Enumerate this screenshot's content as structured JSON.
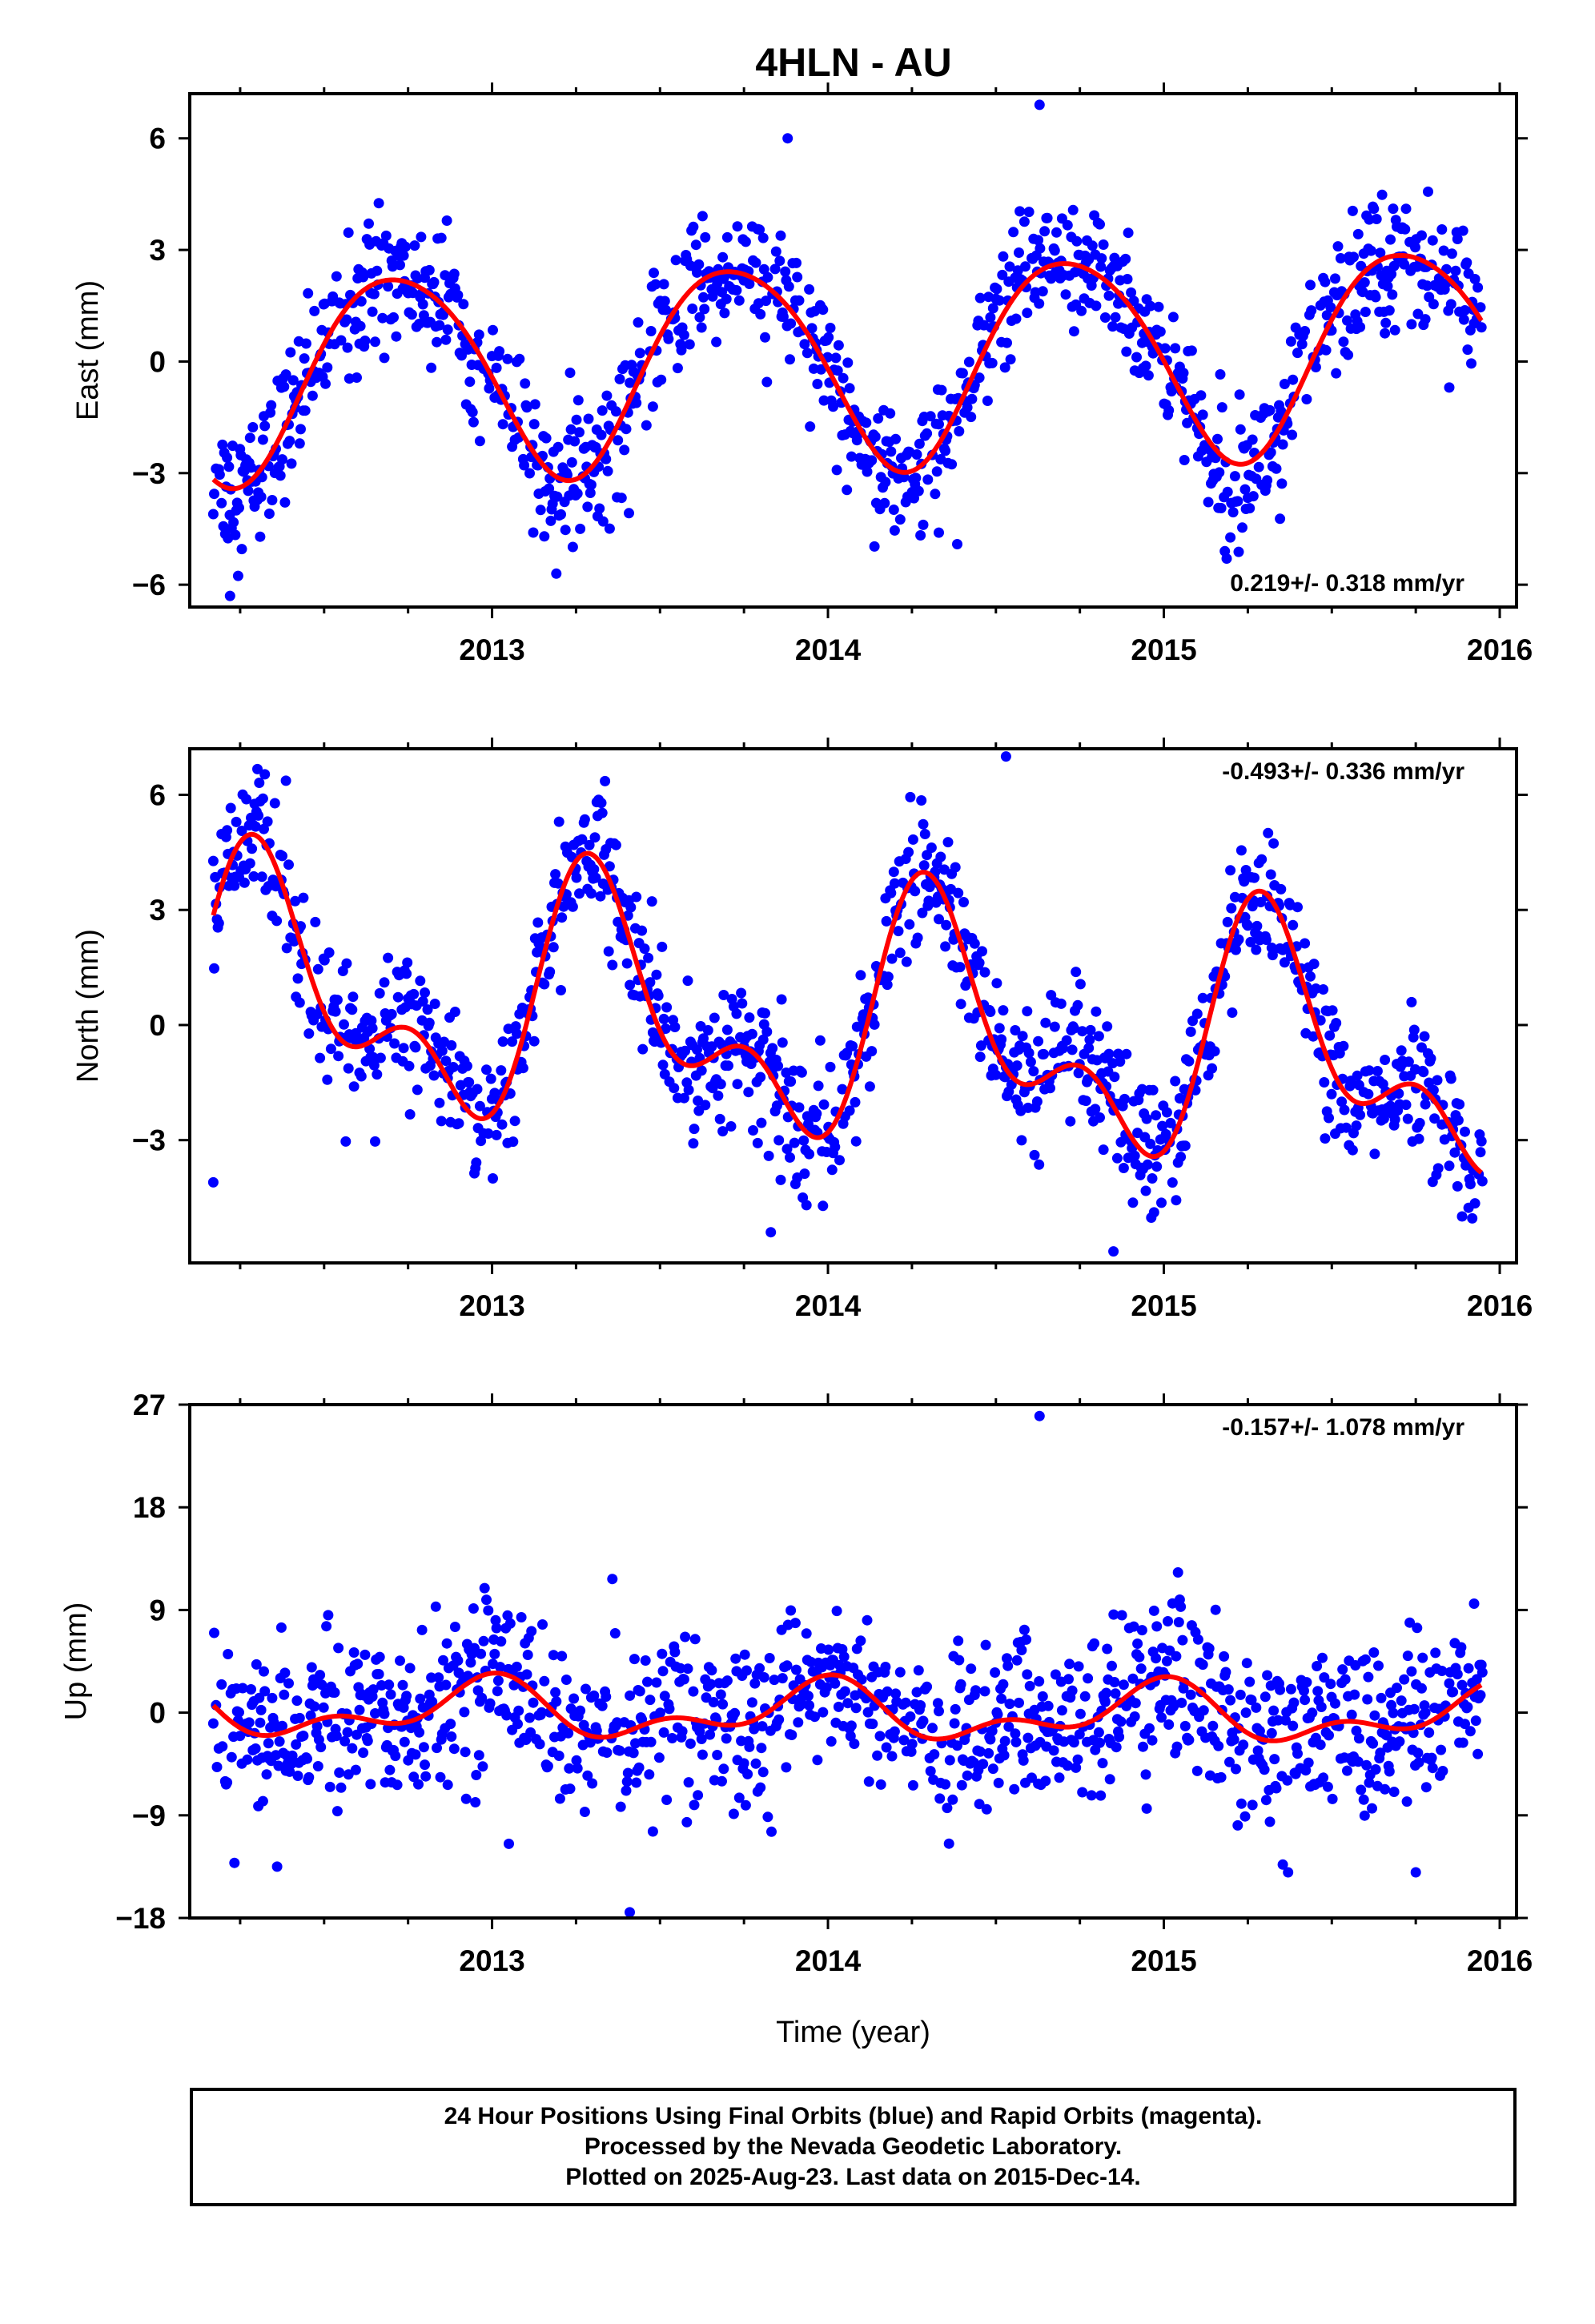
{
  "title": "4HLN - AU",
  "colors": {
    "points": "#0000ff",
    "fit": "#ff0000",
    "frame": "#000000"
  },
  "footer": {
    "line1": "24 Hour Positions Using Final Orbits (blue) and Rapid Orbits (magenta).",
    "line2": "Processed by the Nevada Geodetic Laboratory.",
    "line3": "Plotted on 2025-Aug-23. Last data on 2015-Dec-14."
  },
  "chart_data": [
    {
      "type": "scatter",
      "name": "east",
      "ylabel": "East (mm)",
      "xlabel": "",
      "xlim": [
        2012.1,
        2016.05
      ],
      "ylim": [
        -6.6,
        7.2
      ],
      "xticks": [
        "2013",
        "2014",
        "2015",
        "2016"
      ],
      "xtick_values": [
        2013,
        2014,
        2015,
        2016
      ],
      "yticks": [
        "−6",
        "−3",
        "0",
        "3",
        "6"
      ],
      "ytick_values": [
        -6,
        -3,
        0,
        3,
        6
      ],
      "rate_label": "0.219+/- 0.318 mm/yr",
      "rate_position": "bottom-right",
      "x_range": [
        2012.17,
        2015.95
      ],
      "fit": {
        "rate": 0.219,
        "annual_cos": -0.5,
        "annual_sin": -2.7,
        "semi_cos": 0.3,
        "semi_sin": 0.0
      },
      "noise": 0.9,
      "outliers": [
        [
          2014.63,
          6.9
        ],
        [
          2012.22,
          -6.3
        ],
        [
          2013.88,
          6.0
        ],
        [
          2014.33,
          -4.6
        ]
      ]
    },
    {
      "type": "scatter",
      "name": "north",
      "ylabel": "North (mm)",
      "xlabel": "",
      "xlim": [
        2012.1,
        2016.05
      ],
      "ylim": [
        -6.2,
        7.2
      ],
      "xticks": [
        "2013",
        "2014",
        "2015",
        "2016"
      ],
      "xtick_values": [
        2013,
        2014,
        2015,
        2016
      ],
      "yticks": [
        "−3",
        "0",
        "3",
        "6"
      ],
      "ytick_values": [
        -3,
        0,
        3,
        6
      ],
      "rate_label": "-0.493+/- 0.336 mm/yr",
      "rate_position": "top-right",
      "x_range": [
        2012.17,
        2015.95
      ],
      "fit": {
        "rate": -0.493,
        "annual_cos": -1.2,
        "annual_sin": 2.3,
        "semi_cos": -1.6,
        "semi_sin": -0.4
      },
      "noise": 0.85,
      "outliers": [
        [
          2014.53,
          7.0
        ],
        [
          2014.85,
          -5.9
        ],
        [
          2013.83,
          -5.4
        ],
        [
          2012.17,
          -4.1
        ]
      ]
    },
    {
      "type": "scatter",
      "name": "up",
      "ylabel": "Up (mm)",
      "xlabel": "Time (year)",
      "xlim": [
        2012.1,
        2016.05
      ],
      "ylim": [
        -18,
        27
      ],
      "xticks": [
        "2013",
        "2014",
        "2015",
        "2016"
      ],
      "xtick_values": [
        2013,
        2014,
        2015,
        2016
      ],
      "yticks": [
        "−18",
        "−9",
        "0",
        "9",
        "18",
        "27"
      ],
      "ytick_values": [
        -18,
        -9,
        0,
        9,
        18,
        27
      ],
      "rate_label": "-0.157+/- 1.078 mm/yr",
      "rate_position": "top-right",
      "x_range": [
        2012.17,
        2015.95
      ],
      "fit": {
        "rate": -0.157,
        "annual_cos": 2.0,
        "annual_sin": -0.3,
        "semi_cos": 1.3,
        "semi_sin": 0.4
      },
      "noise": 3.6,
      "outliers": [
        [
          2014.63,
          26.0
        ],
        [
          2013.41,
          -17.5
        ],
        [
          2015.37,
          -14.0
        ],
        [
          2012.36,
          -13.5
        ],
        [
          2013.05,
          -11.5
        ],
        [
          2015.75,
          -14.0
        ]
      ]
    }
  ]
}
